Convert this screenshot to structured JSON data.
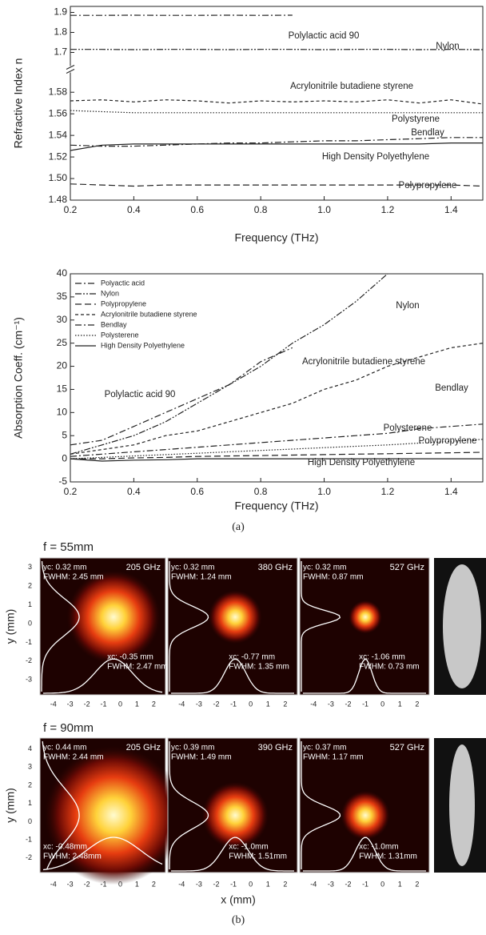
{
  "chart_data": [
    {
      "type": "line",
      "ylabel": "Refractive Index n",
      "xlabel": "Frequency (THz)",
      "x": [
        0.2,
        0.3,
        0.4,
        0.5,
        0.6,
        0.7,
        0.8,
        0.9,
        1.0,
        1.1,
        1.2,
        1.3,
        1.4,
        1.5
      ],
      "xlim": [
        0.2,
        1.5
      ],
      "xticks": [
        0.2,
        0.4,
        0.6,
        0.8,
        {
          "value": 1.0,
          "label": "1.0"
        },
        1.2,
        1.4
      ],
      "axis_break": true,
      "y_segments": [
        {
          "ylim": [
            1.48,
            1.595
          ],
          "yticks": [
            1.48,
            {
              "value": 1.5,
              "label": "1.50"
            },
            1.52,
            1.54,
            1.56,
            1.58
          ]
        },
        {
          "ylim": [
            1.65,
            1.93
          ],
          "yticks": [
            1.7,
            1.8,
            1.9
          ]
        }
      ],
      "series": [
        {
          "style": "dash-dot",
          "color": "#222",
          "values": [
            1.885,
            1.885,
            1.886,
            1.885,
            1.885,
            1.886,
            1.885,
            1.886,
            null,
            null,
            null,
            null,
            null,
            null
          ]
        },
        {
          "style": "dash-dot-dot",
          "color": "#222",
          "values": [
            1.715,
            1.715,
            1.714,
            1.715,
            1.715,
            1.714,
            1.715,
            1.715,
            1.714,
            1.715,
            1.715,
            1.714,
            1.715,
            1.714
          ]
        },
        {
          "style": "dashed-short",
          "color": "#222",
          "values": [
            1.572,
            1.573,
            1.571,
            1.573,
            1.572,
            1.57,
            1.572,
            1.571,
            1.572,
            1.571,
            1.573,
            1.57,
            1.573,
            1.569
          ]
        },
        {
          "style": "dotted",
          "color": "#222",
          "values": [
            1.563,
            1.562,
            1.561,
            1.561,
            1.561,
            1.561,
            1.561,
            1.561,
            1.561,
            1.561,
            1.561,
            1.561,
            1.561,
            1.561
          ]
        },
        {
          "style": "dash-dot",
          "color": "#222",
          "values": [
            1.531,
            1.53,
            1.53,
            1.531,
            1.532,
            1.533,
            1.533,
            1.534,
            1.535,
            1.535,
            1.536,
            1.537,
            1.538,
            1.538
          ]
        },
        {
          "style": "solid",
          "color": "#222",
          "values": [
            1.526,
            1.531,
            1.532,
            1.532,
            1.532,
            1.532,
            1.532,
            1.532,
            1.532,
            1.532,
            1.532,
            1.532,
            1.533,
            1.533
          ]
        },
        {
          "style": "dashed-long",
          "color": "#222",
          "values": [
            1.495,
            1.494,
            1.493,
            1.494,
            1.494,
            1.494,
            1.494,
            1.494,
            1.494,
            1.494,
            1.494,
            1.494,
            1.494,
            1.493
          ]
        }
      ],
      "annotations": [
        "Polylactic acid 90",
        "Nylon",
        "Acrylonitrile butadiene styrene",
        "Polystyrene",
        "Bendlay",
        "High Density Polyethylene",
        "Polypropylene"
      ]
    },
    {
      "type": "line",
      "ylabel": "Absorption Coeff. (cm⁻¹)",
      "xlabel": "Frequency (THz)",
      "x": [
        0.2,
        0.3,
        0.4,
        0.5,
        0.6,
        0.7,
        0.8,
        0.9,
        1.0,
        1.1,
        1.2,
        1.3,
        1.4,
        1.5
      ],
      "xlim": [
        0.2,
        1.5
      ],
      "xticks": [
        0.2,
        0.4,
        0.6,
        0.8,
        {
          "value": 1.0,
          "label": "1.0"
        },
        1.2,
        1.4
      ],
      "ylim": [
        -5,
        40
      ],
      "yticks": [
        -5,
        0,
        5,
        10,
        15,
        20,
        25,
        30,
        35,
        40
      ],
      "legend": "upper left",
      "series": [
        {
          "name": "Polyactic acid",
          "style": "dash-dot",
          "color": "#222",
          "values": [
            3,
            4,
            7,
            10,
            13,
            16,
            21,
            24,
            null,
            null,
            null,
            null,
            null,
            null
          ]
        },
        {
          "name": "Nylon",
          "style": "dash-dot-dot",
          "color": "#222",
          "values": [
            1,
            3,
            5,
            8,
            12,
            16,
            20,
            25,
            29,
            34,
            40,
            null,
            null,
            null
          ]
        },
        {
          "name": "Polypropylene",
          "style": "dashed-long",
          "color": "#222",
          "values": [
            0,
            0,
            0.2,
            0.3,
            0.5,
            0.6,
            0.7,
            0.8,
            0.9,
            1,
            1.1,
            1.2,
            1.3,
            1.4
          ]
        },
        {
          "name": "Acrylonitrile butadiene styrene",
          "style": "dashed-short",
          "color": "#222",
          "values": [
            1,
            2,
            3,
            5,
            6,
            8,
            10,
            12,
            15,
            17,
            20,
            22,
            24,
            25
          ]
        },
        {
          "name": "Bendlay",
          "style": "dash-dot",
          "color": "#222",
          "values": [
            0.5,
            1,
            1.5,
            2,
            2.5,
            3,
            3.5,
            4,
            4.5,
            5,
            5.5,
            6.5,
            7,
            7.5
          ]
        },
        {
          "name": "Polysterene",
          "style": "dotted",
          "color": "#222",
          "values": [
            0,
            0.3,
            0.6,
            0.9,
            1.2,
            1.5,
            1.8,
            2.1,
            2.4,
            2.7,
            3,
            3.4,
            3.8,
            4.2
          ]
        },
        {
          "name": "High Density Polyethylene",
          "style": "solid",
          "color": "#222",
          "values": [
            0,
            -0.5,
            -0.3,
            -0.2,
            0,
            0,
            0,
            0,
            0,
            0,
            0,
            0,
            0,
            0
          ]
        }
      ],
      "annotations": [
        "Nylon",
        "Polylactic acid 90",
        "Acrylonitrile butadiene styrene",
        "Bendlay",
        "Polysterene",
        "Polypropylene",
        "High Density Polyethylene"
      ]
    }
  ],
  "caption_a": "(a)",
  "panel_b": {
    "caption": "(b)",
    "ylabel": "y (mm)",
    "xlabel": "x (mm)",
    "xticks": [
      "-4",
      "-3",
      "-2",
      "-1",
      "0",
      "1",
      "2"
    ],
    "rows": [
      {
        "label": "f = 55mm",
        "yticks": [
          "3",
          "2",
          "1",
          "0",
          "-1",
          "-2",
          "-3"
        ],
        "images": [
          {
            "freq": "205 GHz",
            "yc": "yc: 0.32 mm",
            "yfwhm": "FWHM: 2.45 mm",
            "xc": "xc: -0.35 mm",
            "xfwhm": "FWHM: 2.47 mm"
          },
          {
            "freq": "380 GHz",
            "yc": "yc: 0.32 mm",
            "yfwhm": "FWHM: 1.24 mm",
            "xc": "xc: -0.77 mm",
            "xfwhm": "FWHM: 1.35 mm"
          },
          {
            "freq": "527 GHz",
            "yc": "yc: 0.32 mm",
            "yfwhm": "FWHM: 0.87 mm",
            "xc": "xc: -1.06 mm",
            "xfwhm": "FWHM: 0.73 mm"
          }
        ]
      },
      {
        "label": "f = 90mm",
        "yticks": [
          "4",
          "3",
          "2",
          "1",
          "0",
          "-1",
          "-2"
        ],
        "images": [
          {
            "freq": "205 GHz",
            "yc": "yc: 0.44 mm",
            "yfwhm": "FWHM: 2.44 mm",
            "xc": "xc: -0.48mm",
            "xfwhm": "FWHM:     2.48mm"
          },
          {
            "freq": "390 GHz",
            "yc": "yc: 0.39 mm",
            "yfwhm": "FWHM: 1.49 mm",
            "xc": "xc: -1.0mm",
            "xfwhm": "FWHM: 1.51mm"
          },
          {
            "freq": "527 GHz",
            "yc": "yc: 0.37 mm",
            "yfwhm": "FWHM: 1.17 mm",
            "xc": "xc: -1.0mm",
            "xfwhm": "FWHM: 1.31mm"
          }
        ]
      }
    ]
  }
}
